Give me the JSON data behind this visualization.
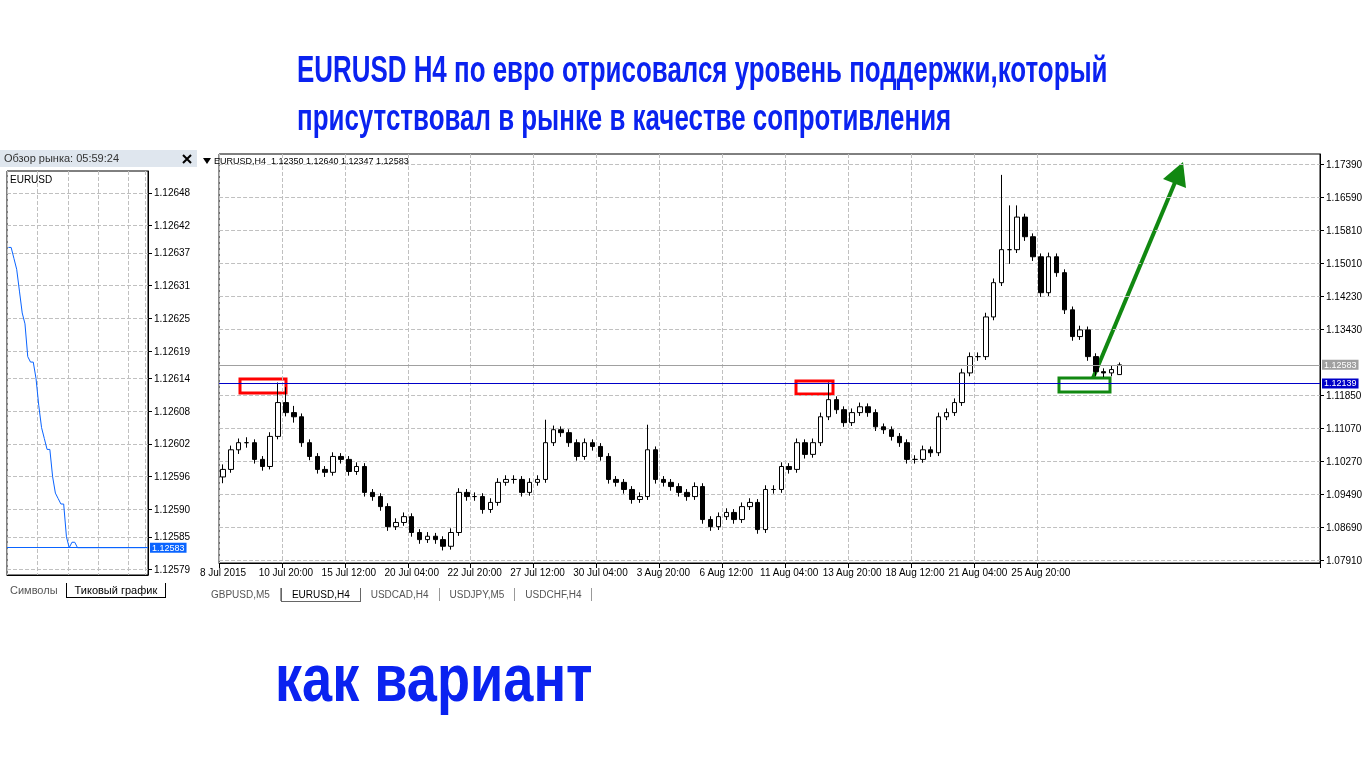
{
  "chart_data": [
    {
      "type": "line",
      "title": "Обзор рынка: 05:59:24",
      "subtitle": "EURUSD",
      "categories": [
        null,
        null,
        null,
        null,
        null,
        null,
        null,
        null,
        null,
        null,
        null,
        null,
        null,
        null,
        null,
        null,
        null,
        null,
        null,
        null,
        null,
        null,
        null,
        null,
        null,
        null,
        null,
        null,
        null,
        null,
        null,
        null,
        null,
        null,
        null,
        null,
        null,
        null,
        null,
        null,
        null,
        null,
        null,
        null,
        null,
        null,
        null,
        null,
        null,
        null,
        null
      ],
      "series": [
        {
          "color": "#0a64ff",
          "values": [
            1.12638,
            1.12638,
            1.12636,
            1.12634,
            1.1263,
            1.12626,
            1.12624,
            1.12618,
            1.12617,
            1.12617,
            1.12614,
            1.12609,
            1.12605,
            1.12603,
            1.12601,
            1.12601,
            1.12596,
            1.12593,
            1.12592,
            1.12591,
            1.12591,
            1.12585,
            1.12583,
            1.12584,
            1.12584,
            1.12583,
            1.12583,
            1.12583,
            1.12583,
            1.12583,
            1.12583,
            1.12583,
            1.12583,
            1.12583,
            1.12583,
            1.12583,
            1.12583,
            1.12583,
            1.12583,
            1.12583,
            1.12583,
            1.12583,
            1.12583,
            1.12583,
            1.12583,
            1.12583,
            1.12583,
            1.12583,
            1.12583,
            1.12583,
            1.12583
          ]
        }
      ],
      "ylim": [
        1.12578,
        1.12652
      ],
      "yticks": [
        1.12579,
        1.12585,
        {
          "value": 1.1259,
          "label": "1.12590"
        },
        1.12596,
        1.12602,
        1.12608,
        1.12614,
        1.12619,
        1.12625,
        1.12631,
        1.12637,
        1.12642,
        1.12648
      ],
      "ref_lines": [
        {
          "axis": "y",
          "value": 1.12583,
          "label": "1.12583",
          "color": "#0a64ff"
        }
      ],
      "grid": true,
      "marker": "none",
      "line_style": "solid",
      "tick_labels": "y",
      "annotations": [
        "Символы",
        "Тиковый график"
      ]
    },
    {
      "type": "candlestick",
      "title": "EURUSD H4  по евро отрисовался уровень поддержки,который присутствовал в рынке в качестве сопротивления",
      "subtitle": "EURUSD,H4  1.12350 1.12640 1.12347 1.12583",
      "categories": [
        "8 Jul 2015",
        null,
        null,
        null,
        null,
        null,
        null,
        null,
        "10 Jul 20:00",
        null,
        null,
        null,
        null,
        null,
        null,
        null,
        "15 Jul 12:00",
        null,
        null,
        null,
        null,
        null,
        null,
        null,
        "20 Jul 04:00",
        null,
        null,
        null,
        null,
        null,
        null,
        null,
        "22 Jul 20:00",
        null,
        null,
        null,
        null,
        null,
        null,
        null,
        "27 Jul 12:00",
        null,
        null,
        null,
        null,
        null,
        null,
        null,
        "30 Jul 04:00",
        null,
        null,
        null,
        null,
        null,
        null,
        null,
        "3 Aug 20:00",
        null,
        null,
        null,
        null,
        null,
        null,
        null,
        "6 Aug 12:00",
        null,
        null,
        null,
        null,
        null,
        null,
        null,
        "11 Aug 04:00",
        null,
        null,
        null,
        null,
        null,
        null,
        null,
        "13 Aug 20:00",
        null,
        null,
        null,
        null,
        null,
        null,
        null,
        "18 Aug 12:00",
        null,
        null,
        null,
        null,
        null,
        null,
        null,
        "21 Aug 04:00",
        null,
        null,
        null,
        null,
        null,
        null,
        null,
        "25 Aug 20:00",
        null,
        null,
        null,
        null,
        null,
        null,
        null,
        null,
        null,
        null,
        null,
        null,
        null,
        null,
        null,
        null,
        null,
        null,
        null,
        null,
        null,
        null,
        null,
        null,
        null,
        null,
        null,
        null,
        null,
        null,
        null,
        null,
        null,
        null,
        null
      ],
      "ohlc": [
        [
          1.099,
          1.102,
          1.0975,
          1.1008
        ],
        [
          1.1008,
          1.1065,
          1.1,
          1.1055
        ],
        [
          1.1055,
          1.1082,
          1.1045,
          1.1072
        ],
        [
          1.1072,
          1.1085,
          1.106,
          1.1072
        ],
        [
          1.1072,
          1.108,
          1.1022,
          1.1032
        ],
        [
          1.1032,
          1.104,
          1.1005,
          1.1015
        ],
        [
          1.1015,
          1.1097,
          1.1008,
          1.1087
        ],
        [
          1.1087,
          1.1216,
          1.108,
          1.1168
        ],
        [
          1.1168,
          1.1205,
          1.1135,
          1.1144
        ],
        [
          1.1144,
          1.116,
          1.112,
          1.1134
        ],
        [
          1.1134,
          1.1142,
          1.1062,
          1.1072
        ],
        [
          1.1072,
          1.108,
          1.103,
          1.1039
        ],
        [
          1.1039,
          1.1047,
          1.0998,
          1.1008
        ],
        [
          1.1008,
          1.1016,
          1.099,
          1.1001
        ],
        [
          1.1001,
          1.1049,
          1.0993,
          1.1039
        ],
        [
          1.1039,
          1.1047,
          1.1022,
          1.1032
        ],
        [
          1.1032,
          1.104,
          1.0993,
          1.1003
        ],
        [
          1.1003,
          1.1025,
          1.0995,
          1.1015
        ],
        [
          1.1015,
          1.1023,
          1.0943,
          1.0953
        ],
        [
          1.0953,
          1.0961,
          1.0933,
          1.0943
        ],
        [
          1.0943,
          1.0951,
          1.0909,
          1.0919
        ],
        [
          1.0919,
          1.0927,
          1.0861,
          1.0871
        ],
        [
          1.0871,
          1.0891,
          1.0863,
          1.0881
        ],
        [
          1.0881,
          1.0905,
          1.0873,
          1.0895
        ],
        [
          1.0895,
          1.0903,
          1.0847,
          1.0857
        ],
        [
          1.0857,
          1.0865,
          1.083,
          1.084
        ],
        [
          1.084,
          1.0858,
          1.0832,
          1.0848
        ],
        [
          1.0848,
          1.0856,
          1.083,
          1.084
        ],
        [
          1.084,
          1.0848,
          1.0814,
          1.0824
        ],
        [
          1.0824,
          1.0867,
          1.0816,
          1.0857
        ],
        [
          1.0857,
          1.0963,
          1.0849,
          1.0953
        ],
        [
          1.0953,
          1.0961,
          1.0933,
          1.0943
        ],
        [
          1.0943,
          1.0953,
          1.0933,
          1.0943
        ],
        [
          1.0943,
          1.0951,
          1.0902,
          1.0912
        ],
        [
          1.0912,
          1.0939,
          1.0904,
          1.0929
        ],
        [
          1.0929,
          1.0987,
          1.0921,
          1.0977
        ],
        [
          1.0977,
          1.0994,
          1.0969,
          1.0984
        ],
        [
          1.0984,
          1.0994,
          1.0974,
          1.0984
        ],
        [
          1.0984,
          1.0992,
          1.0943,
          1.0953
        ],
        [
          1.0953,
          1.0987,
          1.0945,
          1.0977
        ],
        [
          1.0977,
          1.0994,
          1.0969,
          1.0984
        ],
        [
          1.0984,
          1.1127,
          1.0976,
          1.1072
        ],
        [
          1.1072,
          1.1113,
          1.1064,
          1.1103
        ],
        [
          1.1103,
          1.1111,
          1.1086,
          1.1096
        ],
        [
          1.1096,
          1.1104,
          1.1062,
          1.1072
        ],
        [
          1.1072,
          1.108,
          1.1029,
          1.1039
        ],
        [
          1.1039,
          1.1082,
          1.1031,
          1.1072
        ],
        [
          1.1072,
          1.108,
          1.1053,
          1.1063
        ],
        [
          1.1063,
          1.1071,
          1.1029,
          1.1039
        ],
        [
          1.1039,
          1.1047,
          1.0974,
          1.0984
        ],
        [
          1.0984,
          1.0992,
          1.0967,
          1.0977
        ],
        [
          1.0977,
          1.0985,
          1.095,
          1.096
        ],
        [
          1.096,
          1.0968,
          1.0926,
          1.0936
        ],
        [
          1.0936,
          1.0953,
          1.0928,
          1.0943
        ],
        [
          1.0943,
          1.1115,
          1.0935,
          1.1055
        ],
        [
          1.1055,
          1.1063,
          1.0974,
          1.0984
        ],
        [
          1.0984,
          1.0992,
          1.0967,
          1.0977
        ],
        [
          1.0977,
          1.0985,
          1.0957,
          1.0967
        ],
        [
          1.0967,
          1.0975,
          1.0943,
          1.0953
        ],
        [
          1.0953,
          1.0961,
          1.0933,
          1.0943
        ],
        [
          1.0943,
          1.0977,
          1.0935,
          1.0967
        ],
        [
          1.0967,
          1.0975,
          1.0878,
          1.0888
        ],
        [
          1.0888,
          1.0896,
          1.0861,
          1.0871
        ],
        [
          1.0871,
          1.0905,
          1.0863,
          1.0895
        ],
        [
          1.0895,
          1.0915,
          1.0887,
          1.0905
        ],
        [
          1.0905,
          1.0913,
          1.0878,
          1.0888
        ],
        [
          1.0888,
          1.0929,
          1.088,
          1.0919
        ],
        [
          1.0919,
          1.0939,
          1.0911,
          1.0929
        ],
        [
          1.0929,
          1.0937,
          1.0854,
          1.0864
        ],
        [
          1.0864,
          1.097,
          1.0856,
          1.096
        ],
        [
          1.096,
          1.097,
          1.095,
          1.096
        ],
        [
          1.096,
          1.1025,
          1.0952,
          1.1015
        ],
        [
          1.1015,
          1.1023,
          1.0998,
          1.1008
        ],
        [
          1.1008,
          1.1082,
          1.1,
          1.1072
        ],
        [
          1.1072,
          1.108,
          1.1034,
          1.1044
        ],
        [
          1.1044,
          1.1082,
          1.1036,
          1.1072
        ],
        [
          1.1072,
          1.1144,
          1.1064,
          1.1134
        ],
        [
          1.1134,
          1.1216,
          1.1126,
          1.1175
        ],
        [
          1.1175,
          1.1183,
          1.1141,
          1.1151
        ],
        [
          1.1151,
          1.1159,
          1.111,
          1.112
        ],
        [
          1.112,
          1.1154,
          1.1112,
          1.1144
        ],
        [
          1.1144,
          1.1168,
          1.1136,
          1.1158
        ],
        [
          1.1158,
          1.1166,
          1.1134,
          1.1144
        ],
        [
          1.1144,
          1.1152,
          1.11,
          1.111
        ],
        [
          1.111,
          1.1118,
          1.1093,
          1.1103
        ],
        [
          1.1103,
          1.1111,
          1.1077,
          1.1087
        ],
        [
          1.1087,
          1.1095,
          1.1062,
          1.1072
        ],
        [
          1.1072,
          1.108,
          1.1022,
          1.1032
        ],
        [
          1.1032,
          1.1042,
          1.1022,
          1.1032
        ],
        [
          1.1032,
          1.1065,
          1.1024,
          1.1055
        ],
        [
          1.1055,
          1.1063,
          1.1038,
          1.1048
        ],
        [
          1.1048,
          1.1144,
          1.104,
          1.1134
        ],
        [
          1.1134,
          1.1154,
          1.1126,
          1.1144
        ],
        [
          1.1144,
          1.1178,
          1.1136,
          1.1168
        ],
        [
          1.1168,
          1.1249,
          1.116,
          1.1239
        ],
        [
          1.1239,
          1.1288,
          1.1231,
          1.1278
        ],
        [
          1.1278,
          1.1288,
          1.1268,
          1.1278
        ],
        [
          1.1278,
          1.1383,
          1.127,
          1.1373
        ],
        [
          1.1373,
          1.1465,
          1.1365,
          1.1455
        ],
        [
          1.1455,
          1.1713,
          1.1447,
          1.1534
        ],
        [
          1.1534,
          1.164,
          1.15,
          1.1534
        ],
        [
          1.1534,
          1.164,
          1.1526,
          1.1612
        ],
        [
          1.1612,
          1.162,
          1.1555,
          1.1565
        ],
        [
          1.1565,
          1.1573,
          1.1507,
          1.1517
        ],
        [
          1.1517,
          1.1525,
          1.1421,
          1.1431
        ],
        [
          1.1431,
          1.1527,
          1.1423,
          1.1517
        ],
        [
          1.1517,
          1.1525,
          1.1469,
          1.1479
        ],
        [
          1.1479,
          1.1487,
          1.138,
          1.139
        ],
        [
          1.139,
          1.1398,
          1.1316,
          1.1326
        ],
        [
          1.1326,
          1.1352,
          1.1318,
          1.1342
        ],
        [
          1.1342,
          1.135,
          1.1268,
          1.1278
        ],
        [
          1.1278,
          1.1286,
          1.1232,
          1.1242
        ],
        [
          1.1242,
          1.125,
          1.1229,
          1.1239
        ],
        [
          1.1239,
          1.1257,
          1.1231,
          1.1247
        ],
        [
          1.1235,
          1.1264,
          1.12347,
          1.12583
        ],
        null,
        null,
        null,
        null,
        null,
        null,
        null,
        null,
        null,
        null,
        null,
        null,
        null,
        null,
        null,
        null,
        null,
        null,
        null,
        null,
        null,
        null,
        null,
        null,
        null
      ],
      "ylim": [
        1.0784,
        1.1763
      ],
      "yticks": [
        {
          "value": 1.0791,
          "label": "1.07910"
        },
        {
          "value": 1.0869,
          "label": "1.08690"
        },
        {
          "value": 1.0949,
          "label": "1.09490"
        },
        {
          "value": 1.1027,
          "label": "1.10270"
        },
        {
          "value": 1.1107,
          "label": "1.11070"
        },
        {
          "value": 1.1185,
          "label": "1.11850"
        },
        {
          "value": 1.1343,
          "label": "1.13430"
        },
        {
          "value": 1.1423,
          "label": "1.14230"
        },
        {
          "value": 1.1501,
          "label": "1.15010"
        },
        {
          "value": 1.1581,
          "label": "1.15810"
        },
        {
          "value": 1.1659,
          "label": "1.16590"
        },
        {
          "value": 1.1739,
          "label": "1.17390"
        }
      ],
      "ref_lines": [
        {
          "axis": "y",
          "value": 1.12139,
          "label": "1.12139",
          "color": "#0000c8"
        },
        {
          "axis": "y",
          "value": 1.12583,
          "label": "1.12583",
          "color": "#a0a0a0"
        }
      ],
      "grid": true,
      "annotations": [
        "как вариант",
        "GBPUSD,M5",
        "EURUSD,H4",
        "USDCAD,H4",
        "USDJPY,M5",
        "USDCHF,H4"
      ]
    }
  ]
}
